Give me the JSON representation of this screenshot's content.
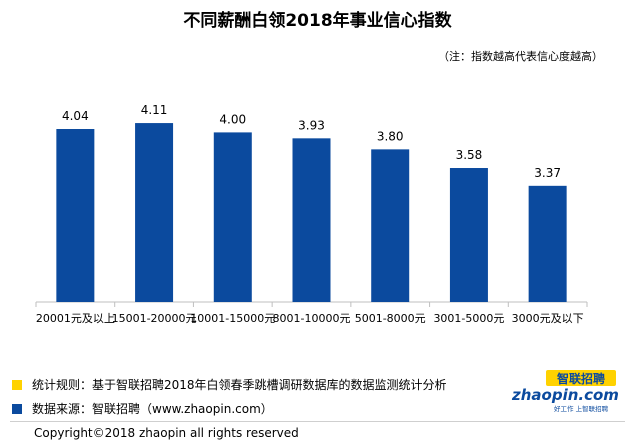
{
  "header": {
    "title": "不同薪酬白领2018年事业信心指数",
    "note": "（注：指数越高代表信心度越高）"
  },
  "legend": [
    {
      "color": "#FFD200",
      "text": "统计规则：基于智联招聘2018年白领春季跳槽调研数据库的数据监测统计分析"
    },
    {
      "color": "#0B4A9E",
      "text": "数据来源：智联招聘（www.zhaopin.com）"
    }
  ],
  "footer": {
    "copyright": "Copyright©2018 zhaopin all rights reserved"
  },
  "logo": {
    "cn": "智联招聘",
    "en": "zhaopin.com",
    "slogan": "好工作  上智联招聘",
    "color": "#0B4A9E",
    "accent": "#FFD200"
  },
  "colors": {
    "bar": "#0B4A9E",
    "axis": "#bfbfbf"
  },
  "chart_data": {
    "type": "bar",
    "title": "不同薪酬白领2018年事业信心指数",
    "categories": [
      "20001元及以上",
      "15001-20000元",
      "10001-15000元",
      "8001-10000元",
      "5001-8000元",
      "3001-5000元",
      "3000元及以下"
    ],
    "values": [
      4.04,
      4.11,
      4.0,
      3.93,
      3.8,
      3.58,
      3.37
    ],
    "value_labels": [
      "4.04",
      "4.11",
      "4.00",
      "3.93",
      "3.80",
      "3.58",
      "3.37"
    ],
    "xlabel": "",
    "ylabel": "",
    "ylim": [
      2.0,
      4.5
    ],
    "grid": false
  }
}
